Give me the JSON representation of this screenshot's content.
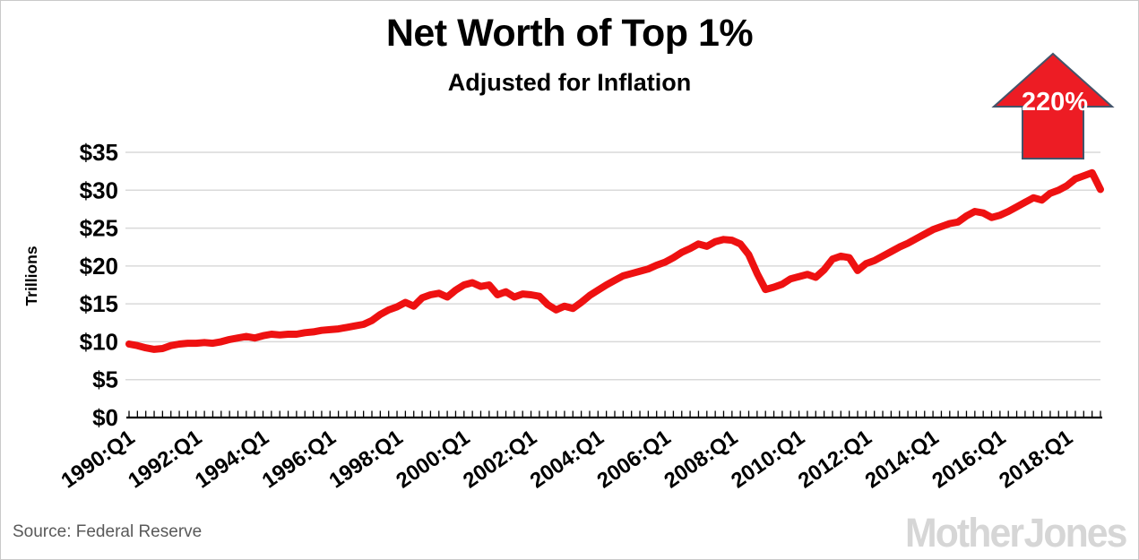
{
  "header": {
    "title": "Net Worth of Top 1%",
    "subtitle": "Adjusted for Inflation"
  },
  "annotation": {
    "label": "220%",
    "label_color": "#ffffff",
    "arrow_fill": "#ed1c24",
    "arrow_stroke": "#44546a"
  },
  "source": {
    "label": "Source:  Federal Reserve"
  },
  "branding": {
    "logo_text": "Mother Jones"
  },
  "chart_data": {
    "type": "line",
    "title": "Net Worth of Top 1%",
    "subtitle": "Adjusted for Inflation",
    "xlabel": "",
    "ylabel": "Trillions",
    "ylim": [
      0,
      35
    ],
    "grid": "horizontal",
    "legend": "none",
    "line_color": "#ee1111",
    "grid_color": "#d9d9d9",
    "y_ticks": [
      0,
      5,
      10,
      15,
      20,
      25,
      30,
      35
    ],
    "y_tick_labels": [
      "$0",
      "$5",
      "$10",
      "$15",
      "$20",
      "$25",
      "$30",
      "$35"
    ],
    "x_tick_every": 8,
    "x_tick_labels": [
      "1990:Q1",
      "1992:Q1",
      "1994:Q1",
      "1996:Q1",
      "1998:Q1",
      "2000:Q1",
      "2002:Q1",
      "2004:Q1",
      "2006:Q1",
      "2008:Q1",
      "2010:Q1",
      "2012:Q1",
      "2014:Q1",
      "2016:Q1",
      "2018:Q1"
    ],
    "categories": [
      "1990:Q1",
      "1990:Q2",
      "1990:Q3",
      "1990:Q4",
      "1991:Q1",
      "1991:Q2",
      "1991:Q3",
      "1991:Q4",
      "1992:Q1",
      "1992:Q2",
      "1992:Q3",
      "1992:Q4",
      "1993:Q1",
      "1993:Q2",
      "1993:Q3",
      "1993:Q4",
      "1994:Q1",
      "1994:Q2",
      "1994:Q3",
      "1994:Q4",
      "1995:Q1",
      "1995:Q2",
      "1995:Q3",
      "1995:Q4",
      "1996:Q1",
      "1996:Q2",
      "1996:Q3",
      "1996:Q4",
      "1997:Q1",
      "1997:Q2",
      "1997:Q3",
      "1997:Q4",
      "1998:Q1",
      "1998:Q2",
      "1998:Q3",
      "1998:Q4",
      "1999:Q1",
      "1999:Q2",
      "1999:Q3",
      "1999:Q4",
      "2000:Q1",
      "2000:Q2",
      "2000:Q3",
      "2000:Q4",
      "2001:Q1",
      "2001:Q2",
      "2001:Q3",
      "2001:Q4",
      "2002:Q1",
      "2002:Q2",
      "2002:Q3",
      "2002:Q4",
      "2003:Q1",
      "2003:Q2",
      "2003:Q3",
      "2003:Q4",
      "2004:Q1",
      "2004:Q2",
      "2004:Q3",
      "2004:Q4",
      "2005:Q1",
      "2005:Q2",
      "2005:Q3",
      "2005:Q4",
      "2006:Q1",
      "2006:Q2",
      "2006:Q3",
      "2006:Q4",
      "2007:Q1",
      "2007:Q2",
      "2007:Q3",
      "2007:Q4",
      "2008:Q1",
      "2008:Q2",
      "2008:Q3",
      "2008:Q4",
      "2009:Q1",
      "2009:Q2",
      "2009:Q3",
      "2009:Q4",
      "2010:Q1",
      "2010:Q2",
      "2010:Q3",
      "2010:Q4",
      "2011:Q1",
      "2011:Q2",
      "2011:Q3",
      "2011:Q4",
      "2012:Q1",
      "2012:Q2",
      "2012:Q3",
      "2012:Q4",
      "2013:Q1",
      "2013:Q2",
      "2013:Q3",
      "2013:Q4",
      "2014:Q1",
      "2014:Q2",
      "2014:Q3",
      "2014:Q4",
      "2015:Q1",
      "2015:Q2",
      "2015:Q3",
      "2015:Q4",
      "2016:Q1",
      "2016:Q2",
      "2016:Q3",
      "2016:Q4",
      "2017:Q1",
      "2017:Q2",
      "2017:Q3",
      "2017:Q4",
      "2018:Q1",
      "2018:Q2",
      "2018:Q3",
      "2018:Q4",
      "2019:Q1"
    ],
    "values": [
      9.7,
      9.5,
      9.2,
      9.0,
      9.1,
      9.5,
      9.7,
      9.8,
      9.8,
      9.9,
      9.8,
      10.0,
      10.3,
      10.5,
      10.7,
      10.5,
      10.8,
      11.0,
      10.9,
      11.0,
      11.0,
      11.2,
      11.3,
      11.5,
      11.6,
      11.7,
      11.9,
      12.1,
      12.3,
      12.8,
      13.6,
      14.2,
      14.6,
      15.2,
      14.7,
      15.8,
      16.2,
      16.4,
      15.9,
      16.8,
      17.5,
      17.8,
      17.3,
      17.5,
      16.2,
      16.6,
      15.9,
      16.3,
      16.2,
      16.0,
      14.9,
      14.2,
      14.7,
      14.4,
      15.2,
      16.1,
      16.8,
      17.5,
      18.1,
      18.7,
      19.0,
      19.3,
      19.6,
      20.1,
      20.5,
      21.1,
      21.8,
      22.3,
      22.9,
      22.6,
      23.2,
      23.5,
      23.4,
      22.9,
      21.5,
      19.0,
      16.9,
      17.2,
      17.6,
      18.3,
      18.6,
      18.9,
      18.5,
      19.5,
      20.9,
      21.3,
      21.1,
      19.4,
      20.3,
      20.7,
      21.3,
      21.9,
      22.5,
      23.0,
      23.6,
      24.2,
      24.8,
      25.2,
      25.6,
      25.8,
      26.6,
      27.2,
      27.0,
      26.4,
      26.7,
      27.2,
      27.8,
      28.4,
      29.0,
      28.7,
      29.6,
      30.0,
      30.6,
      31.5,
      31.9,
      32.3,
      30.1
    ]
  }
}
